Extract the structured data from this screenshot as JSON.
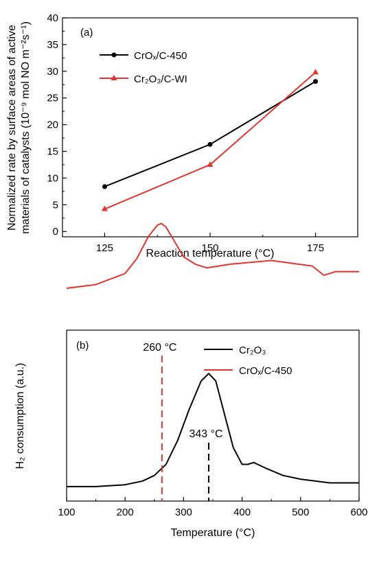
{
  "chart_data": [
    {
      "type": "line",
      "panel_label": "(a)",
      "xlabel": "Reaction temperature (°C)",
      "ylabel_line1": "Normalized rate by surface areas of active",
      "ylabel_line2": "materials of catalysts (10⁻⁹ mol NO m⁻²s⁻¹)",
      "categories": [
        "125",
        "150",
        "175"
      ],
      "x": [
        125,
        150,
        175
      ],
      "xlim": [
        115,
        185
      ],
      "ylim": [
        -1,
        40
      ],
      "yticks": [
        "0",
        "5",
        "10",
        "15",
        "20",
        "25",
        "30",
        "35",
        "40"
      ],
      "legend_position": "top-left",
      "series": [
        {
          "name": "CrOₓ/C-450",
          "color": "#000000",
          "marker": "circle",
          "values": [
            8.4,
            16.3,
            28.1
          ]
        },
        {
          "name": "Cr₂O₃/C-WI",
          "color": "#e8322e",
          "marker": "triangle",
          "values": [
            4.2,
            12.5,
            29.8
          ]
        }
      ]
    },
    {
      "type": "line",
      "panel_label": "(b)",
      "xlabel": "Temperature (°C)",
      "ylabel": "H₂ consumption (a.u.)",
      "xlim": [
        100,
        600
      ],
      "xticks": [
        "100",
        "200",
        "300",
        "400",
        "500",
        "600"
      ],
      "legend_position": "top-right",
      "series": [
        {
          "name": "Cr₂O₃",
          "color": "#000000",
          "x": [
            100,
            150,
            200,
            230,
            250,
            270,
            290,
            310,
            330,
            343,
            355,
            370,
            385,
            400,
            410,
            420,
            440,
            470,
            500,
            550,
            600
          ],
          "y": [
            0.03,
            0.03,
            0.04,
            0.06,
            0.09,
            0.15,
            0.28,
            0.45,
            0.6,
            0.64,
            0.6,
            0.42,
            0.24,
            0.15,
            0.15,
            0.16,
            0.13,
            0.09,
            0.07,
            0.05,
            0.05
          ]
        },
        {
          "name": "CrOₓ/C-450",
          "color": "#e8322e",
          "x": [
            100,
            150,
            200,
            220,
            240,
            255,
            262,
            270,
            285,
            300,
            320,
            340,
            380,
            450,
            520,
            540,
            560,
            600
          ],
          "y": [
            1.1,
            1.12,
            1.18,
            1.26,
            1.38,
            1.44,
            1.45,
            1.43,
            1.35,
            1.27,
            1.23,
            1.21,
            1.23,
            1.25,
            1.22,
            1.17,
            1.19,
            1.19
          ]
        }
      ],
      "annotations": [
        {
          "text": "260 °C",
          "x": 263,
          "color": "#e8322e"
        },
        {
          "text": "343 °C",
          "x": 343,
          "color": "#000000"
        }
      ]
    }
  ]
}
